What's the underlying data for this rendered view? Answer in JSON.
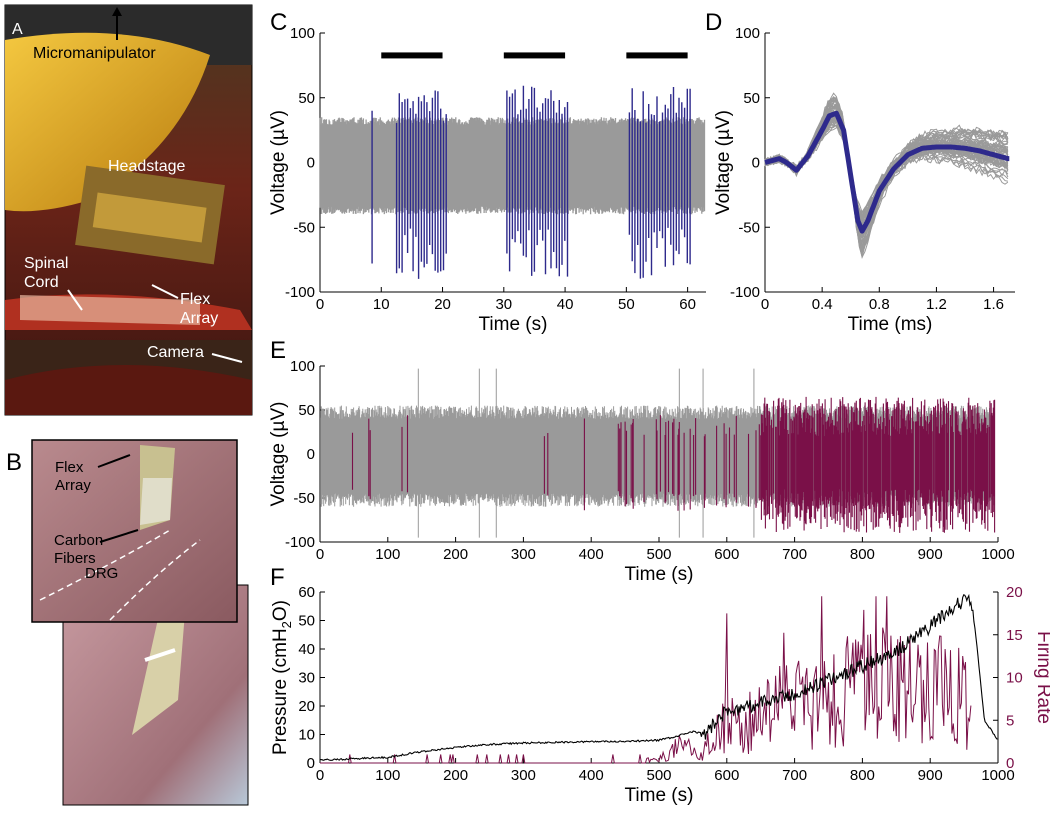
{
  "panel_letters": {
    "a": "A",
    "b": "B",
    "c": "C",
    "d": "D",
    "e": "E",
    "f": "F"
  },
  "photo_a": {
    "labels": {
      "micromanipulator": "Micromanipulator",
      "headstage": "Headstage",
      "spinal1": "Spinal",
      "spinal2": "Cord",
      "flex1": "Flex",
      "flex2": "Array",
      "camera": "Camera"
    }
  },
  "photo_b": {
    "labels": {
      "flex1": "Flex",
      "flex2": "Array",
      "carbon1": "Carbon",
      "carbon2": "Fibers",
      "drg": "DRG"
    }
  },
  "colors": {
    "gray": "#9a9a9a",
    "blue": "#2e2a8c",
    "maroon": "#7a1048",
    "black": "#000000"
  },
  "chart_data": [
    {
      "id": "C",
      "type": "line",
      "title": "",
      "xlabel": "Time (s)",
      "ylabel": "Voltage (µV)",
      "xlim": [
        0,
        63
      ],
      "ylim": [
        -100,
        100
      ],
      "xticks": [
        0,
        10,
        20,
        30,
        40,
        50,
        60
      ],
      "yticks": [
        -100,
        -50,
        0,
        50,
        100
      ],
      "series": [
        {
          "name": "raw signal",
          "color": "#9a9a9a",
          "band": [
            -40,
            35
          ],
          "x_range": [
            0,
            63
          ]
        },
        {
          "name": "sorted spikes",
          "color": "#2e2a8c",
          "bursts": [
            [
              12.5,
              21
            ],
            [
              30.5,
              40.5
            ],
            [
              50.5,
              60.5
            ]
          ],
          "extra_spikes": [
            8.5
          ],
          "amplitude": [
            -90,
            55
          ]
        }
      ],
      "stimulus_bars": [
        [
          10,
          20
        ],
        [
          30,
          40
        ],
        [
          50,
          60
        ]
      ]
    },
    {
      "id": "D",
      "type": "line",
      "xlabel": "Time (ms)",
      "ylabel": "Voltage (µV)",
      "xlim": [
        0,
        1.75
      ],
      "ylim": [
        -100,
        100
      ],
      "xticks": [
        0,
        0.4,
        0.8,
        1.2,
        1.6
      ],
      "yticks": [
        -100,
        -50,
        0,
        50,
        100
      ],
      "series": [
        {
          "name": "mean waveform",
          "color": "#2e2a8c",
          "x": [
            0,
            0.1,
            0.15,
            0.22,
            0.3,
            0.4,
            0.45,
            0.5,
            0.55,
            0.6,
            0.65,
            0.68,
            0.72,
            0.8,
            0.9,
            1.0,
            1.1,
            1.2,
            1.3,
            1.4,
            1.5,
            1.6,
            1.7
          ],
          "y": [
            0,
            3,
            0,
            -6,
            5,
            25,
            36,
            38,
            25,
            -10,
            -45,
            -53,
            -45,
            -22,
            -5,
            6,
            11,
            12,
            12,
            11,
            9,
            6,
            3
          ]
        },
        {
          "name": "individual waveforms",
          "color": "#9a9a9a",
          "count": 60
        }
      ]
    },
    {
      "id": "E",
      "type": "line",
      "xlabel": "Time (s)",
      "ylabel": "Voltage (µV)",
      "xlim": [
        0,
        1000
      ],
      "ylim": [
        -100,
        100
      ],
      "xticks": [
        0,
        100,
        200,
        300,
        400,
        500,
        600,
        700,
        800,
        900,
        1000
      ],
      "yticks": [
        -100,
        -50,
        0,
        50,
        100
      ],
      "series": [
        {
          "name": "raw signal",
          "color": "#9a9a9a",
          "band": [
            -60,
            55
          ],
          "x_range": [
            0,
            1000
          ],
          "artifacts": [
            145,
            235,
            530,
            565,
            640,
            260
          ]
        },
        {
          "name": "sorted spikes",
          "color": "#7a1048",
          "dense_start": 650,
          "amplitude": [
            -90,
            65
          ]
        }
      ]
    },
    {
      "id": "F",
      "type": "line",
      "xlabel": "Time (s)",
      "ylabel": "Pressure (cmH2O)",
      "y2label": "Firing Rate",
      "xlim": [
        0,
        1000
      ],
      "ylim": [
        0,
        60
      ],
      "y2lim": [
        0,
        20
      ],
      "xticks": [
        0,
        100,
        200,
        300,
        400,
        500,
        600,
        700,
        800,
        900,
        1000
      ],
      "yticks": [
        0,
        10,
        20,
        30,
        40,
        50,
        60
      ],
      "y2ticks": [
        0,
        5,
        10,
        15,
        20
      ],
      "series": [
        {
          "name": "Pressure",
          "axis": "left",
          "color": "#000000",
          "x": [
            0,
            100,
            150,
            200,
            250,
            300,
            400,
            450,
            500,
            520,
            550,
            570,
            580,
            600,
            650,
            700,
            750,
            800,
            850,
            900,
            930,
            955,
            965,
            980,
            1000
          ],
          "y": [
            1,
            2,
            4,
            5.5,
            6.5,
            7,
            7.5,
            7.5,
            8,
            9,
            11,
            10,
            14,
            18,
            21,
            24,
            29,
            34,
            39,
            48,
            54,
            58,
            50,
            15,
            8
          ]
        },
        {
          "name": "Firing Rate",
          "axis": "right",
          "color": "#7a1048",
          "x": [
            0,
            100,
            200,
            300,
            400,
            450,
            500,
            520,
            540,
            560,
            580,
            600,
            620,
            650,
            700,
            750,
            800,
            850,
            900,
            940,
            960
          ],
          "y": [
            0,
            0,
            0,
            0,
            0,
            0,
            0.5,
            1.5,
            2,
            0.5,
            3,
            5,
            4,
            6,
            7,
            8,
            9,
            9,
            8.5,
            8,
            7
          ]
        }
      ]
    }
  ]
}
